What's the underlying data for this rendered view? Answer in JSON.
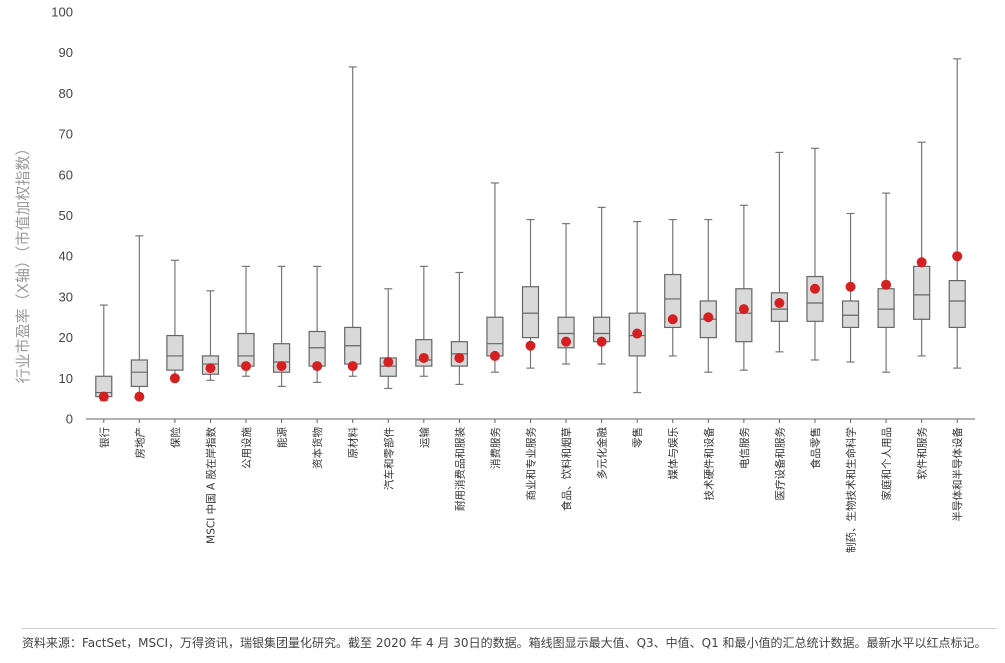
{
  "chart_data": {
    "type": "box",
    "ylabel": "行业市盈率（X轴）（市值加权指数）",
    "ylim": [
      0,
      100
    ],
    "yticks": [
      0,
      10,
      20,
      30,
      40,
      50,
      60,
      70,
      80,
      90,
      100
    ],
    "grid": false,
    "colors": {
      "box_fill": "#d9d9d9",
      "box_stroke": "#666666",
      "whisker": "#777777",
      "latest_marker": "#d42020",
      "axis": "#666666"
    },
    "categories": [
      "银行",
      "房地产",
      "保险",
      "MSCI 中国 A 股在岸指数",
      "公用设施",
      "能源",
      "资本货物",
      "原材料",
      "汽车和零部件",
      "运输",
      "耐用消费品和服装",
      "消费服务",
      "商业和专业服务",
      "食品、饮料和烟草",
      "多元化金融",
      "零售",
      "媒体与娱乐",
      "技术硬件和设备",
      "电信服务",
      "医疗设备和服务",
      "食品零售",
      "制药、生物技术和生命科学",
      "家庭和个人用品",
      "软件和服务",
      "半导体和半导体设备"
    ],
    "series": [
      {
        "min": [
          4.5,
          5.5,
          10,
          9.5,
          10.5,
          8,
          9,
          10.5,
          7.5,
          10.5,
          8.5,
          11.5,
          12.5,
          13.5,
          13.5,
          6.5,
          15.5,
          11.5,
          12,
          16.5,
          14.5,
          14,
          11.5,
          15.5,
          12.5
        ],
        "q1": [
          5.5,
          8,
          12,
          11,
          13,
          11.5,
          13,
          13.5,
          10.5,
          13,
          13,
          15.5,
          20,
          17.5,
          19,
          15.5,
          22.5,
          20,
          19,
          24,
          24,
          22.5,
          22.5,
          24.5,
          22.5
        ],
        "median": [
          6.5,
          11.5,
          15.5,
          13.5,
          15.5,
          14,
          17.5,
          18,
          13,
          14.5,
          16,
          18.5,
          26,
          21,
          21,
          20.5,
          29.5,
          24.5,
          26,
          27,
          28.5,
          25.5,
          27,
          30.5,
          29
        ],
        "q3": [
          10.5,
          14.5,
          20.5,
          15.5,
          21,
          18.5,
          21.5,
          22.5,
          15,
          19.5,
          19,
          25,
          32.5,
          25,
          25,
          26,
          35.5,
          29,
          32,
          31,
          35,
          29,
          32,
          37.5,
          34
        ],
        "max": [
          28,
          45,
          39,
          31.5,
          37.5,
          37.5,
          37.5,
          86.5,
          32,
          37.5,
          36,
          58,
          49,
          48,
          52,
          48.5,
          49,
          49,
          52.5,
          65.5,
          66.5,
          50.5,
          55.5,
          68,
          88.5
        ],
        "latest": [
          5.5,
          5.5,
          10,
          12.5,
          13,
          13,
          13,
          13,
          14,
          15,
          15,
          15.5,
          18,
          19,
          19,
          21,
          24.5,
          25,
          27,
          28.5,
          32,
          32.5,
          33,
          38.5,
          40
        ]
      }
    ]
  },
  "footer": {
    "source": "资料来源：FactSet，MSCI，万得资讯，瑞银集团量化研究。截至 2020 年 4 月 30日的数据。箱线图显示最大值、Q3、中值、Q1 和最小值的汇总统计数据。最新水平以红点标记。"
  }
}
